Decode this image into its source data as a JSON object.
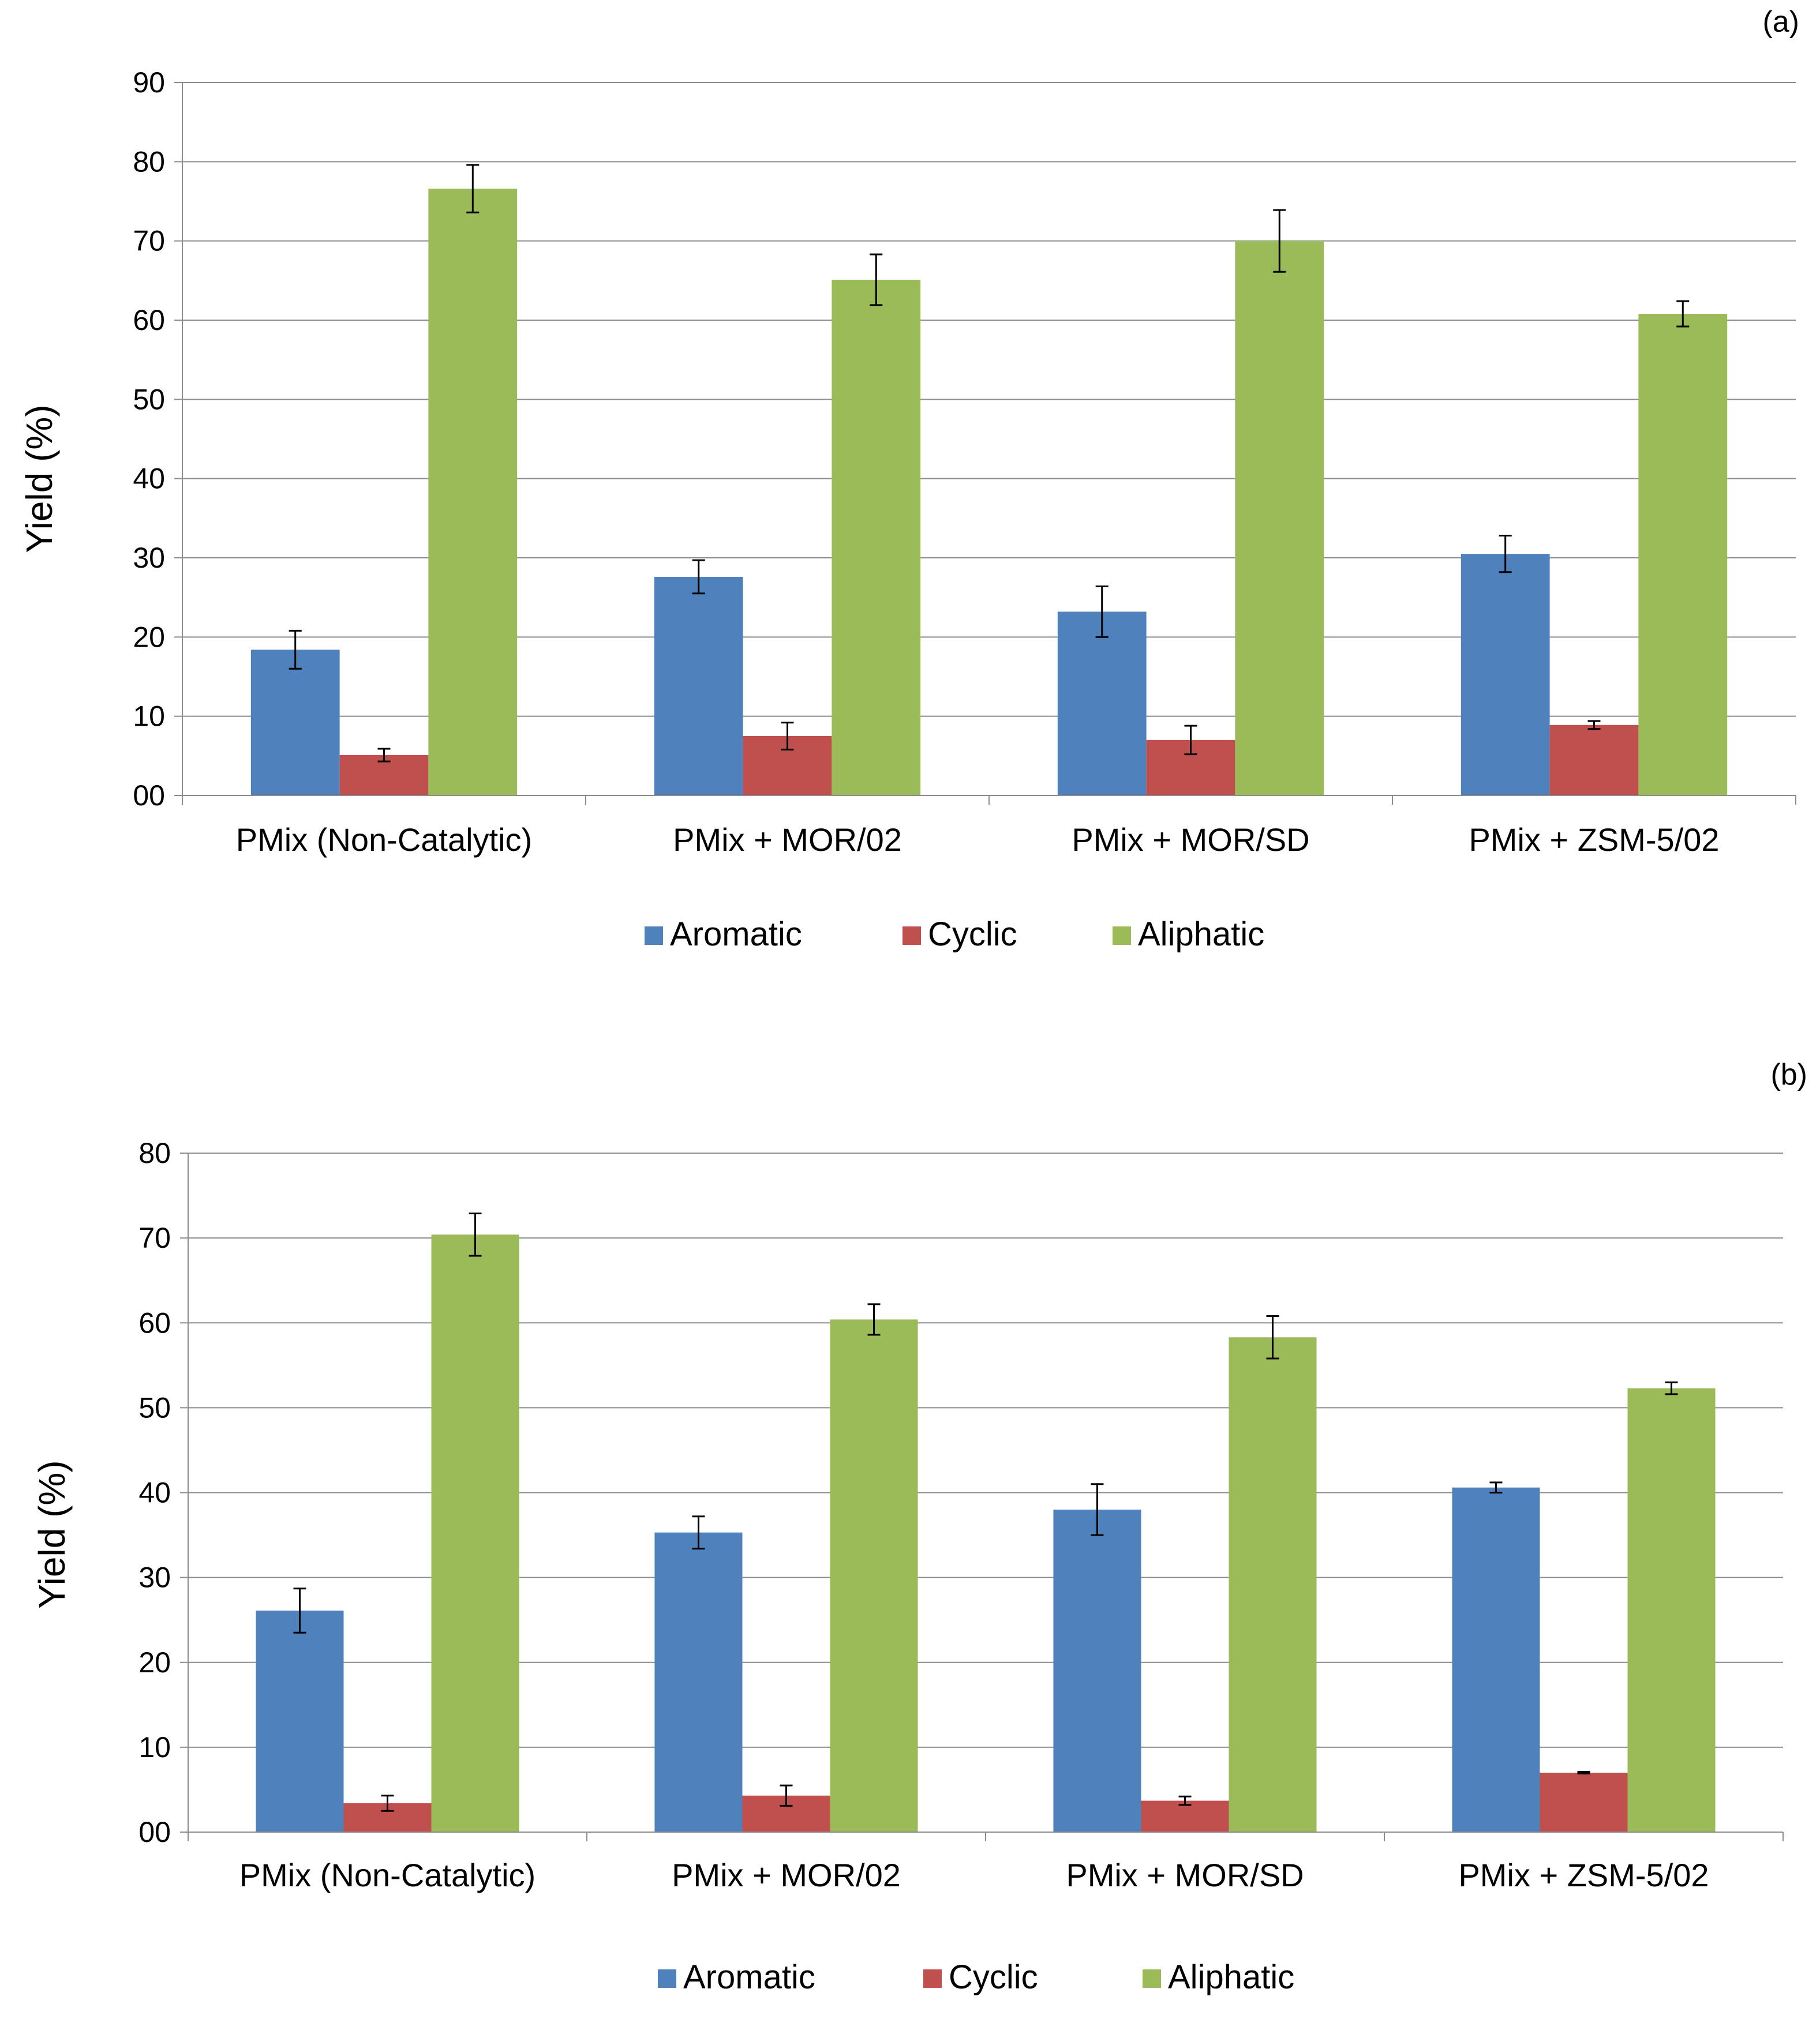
{
  "chart_data": [
    {
      "panel_label": "(a)",
      "type": "bar",
      "ylabel": "Yield (%)",
      "ylim": [
        0,
        90
      ],
      "yticks": [
        "00",
        "10",
        "20",
        "30",
        "40",
        "50",
        "60",
        "70",
        "80",
        "90"
      ],
      "grid": true,
      "legend_position": "bottom",
      "categories": [
        "PMix (Non-Catalytic)",
        "PMix + MOR/02",
        "PMix + MOR/SD",
        "PMix + ZSM-5/02"
      ],
      "series": [
        {
          "name": "Aromatic",
          "color": "#4F81BD",
          "values": [
            18.4,
            27.6,
            23.2,
            30.5
          ],
          "errors": [
            2.4,
            2.1,
            3.2,
            2.3
          ]
        },
        {
          "name": "Cyclic",
          "color": "#C0504D",
          "values": [
            5.1,
            7.5,
            7.0,
            8.9
          ],
          "errors": [
            0.8,
            1.7,
            1.8,
            0.5
          ]
        },
        {
          "name": "Aliphatic",
          "color": "#9BBB59",
          "values": [
            76.6,
            65.1,
            70.0,
            60.8
          ],
          "errors": [
            3.0,
            3.2,
            3.9,
            1.6
          ]
        }
      ]
    },
    {
      "panel_label": "(b)",
      "type": "bar",
      "ylabel": "Yield (%)",
      "ylim": [
        0,
        80
      ],
      "yticks": [
        "00",
        "10",
        "20",
        "30",
        "40",
        "50",
        "60",
        "70",
        "80"
      ],
      "grid": true,
      "legend_position": "bottom",
      "categories": [
        "PMix (Non-Catalytic)",
        "PMix + MOR/02",
        "PMix + MOR/SD",
        "PMix + ZSM-5/02"
      ],
      "series": [
        {
          "name": "Aromatic",
          "color": "#4F81BD",
          "values": [
            26.1,
            35.3,
            38.0,
            40.6
          ],
          "errors": [
            2.6,
            1.9,
            3.0,
            0.6
          ]
        },
        {
          "name": "Cyclic",
          "color": "#C0504D",
          "values": [
            3.4,
            4.3,
            3.7,
            7.0
          ],
          "errors": [
            0.9,
            1.2,
            0.5,
            0.1
          ]
        },
        {
          "name": "Aliphatic",
          "color": "#9BBB59",
          "values": [
            70.4,
            60.4,
            58.3,
            52.3
          ],
          "errors": [
            2.5,
            1.8,
            2.5,
            0.7
          ]
        }
      ]
    }
  ]
}
